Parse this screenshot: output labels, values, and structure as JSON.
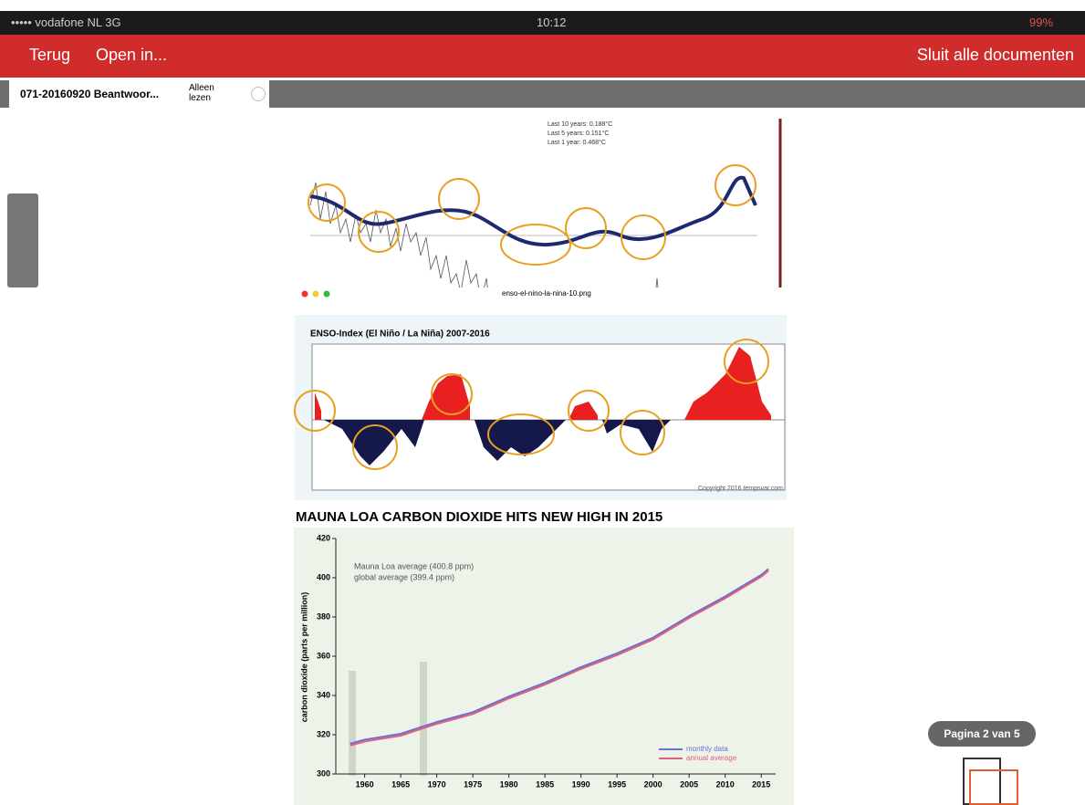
{
  "status_bar": {
    "carrier": "••••• vodafone NL 3G",
    "time": "10:12",
    "battery": "99%"
  },
  "nav_bar": {
    "back": "Terug",
    "open_in": "Open in...",
    "close_all": "Sluit alle documenten"
  },
  "tab": {
    "title": "071-20160920 Beantwoor...",
    "mode": "Alleen lezen"
  },
  "document": {
    "temperature_chart": {
      "legend": [
        "Last 10 years: 0.188°C",
        "Last 5 years: 0.151°C",
        "Last 1 year: 0.468°C"
      ]
    },
    "enso_chart": {
      "window_title": "enso-el-nino-la-nina-10.png",
      "title": "ENSO-Index (El Niño / La Niña) 2007-2016",
      "copyright": "Copyright 2016 tempsvar.com"
    },
    "co2_chart": {
      "type": "line",
      "title": "MAUNA LOA CARBON DIOXIDE HITS NEW HIGH IN 2015",
      "ylabel": "carbon dioxide (parts per million)",
      "annotations": [
        "Mauna Loa average (400.8 ppm)",
        "global average (399.4 ppm)"
      ],
      "x": [
        1958,
        1960,
        1965,
        1970,
        1975,
        1980,
        1985,
        1990,
        1995,
        2000,
        2005,
        2010,
        2015,
        2016
      ],
      "series": [
        {
          "name": "monthly data",
          "color": "#6a6fd0",
          "values": [
            315,
            317,
            320,
            326,
            331,
            339,
            346,
            354,
            361,
            369,
            380,
            390,
            401,
            404
          ]
        },
        {
          "name": "annual average",
          "color": "#e0607a",
          "values": [
            315,
            317,
            320,
            326,
            331,
            339,
            346,
            354,
            361,
            369,
            380,
            390,
            401,
            404
          ]
        }
      ],
      "xlim": [
        1956,
        2017
      ],
      "ylim": [
        300,
        420
      ],
      "xticks": [
        1960,
        1965,
        1970,
        1975,
        1980,
        1985,
        1990,
        1995,
        2000,
        2005,
        2010,
        2015
      ],
      "yticks": [
        300,
        320,
        340,
        360,
        380,
        400,
        420
      ]
    }
  },
  "page_indicator": "Pagina 2 van 5"
}
